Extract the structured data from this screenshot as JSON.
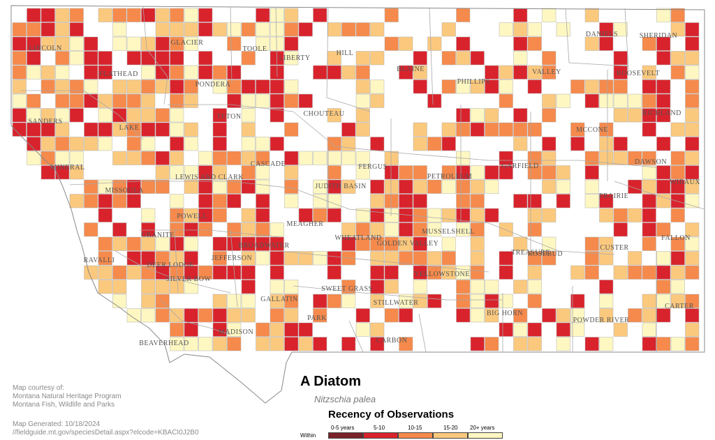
{
  "map": {
    "counties": [
      "LINCOLN",
      "FLATHEAD",
      "GLACIER",
      "TOOLE",
      "LIBERTY",
      "HILL",
      "BLAINE",
      "PHILLIPS",
      "VALLEY",
      "DANIELS",
      "SHERIDAN",
      "ROOSEVELT",
      "PONDERA",
      "TETON",
      "LAKE",
      "SANDERS",
      "CHOUTEAU",
      "MINERAL",
      "CASCADE",
      "FERGUS",
      "PETROLEUM",
      "GARFIELD",
      "MCCONE",
      "RICHLAND",
      "DAWSON",
      "WIBAUX",
      "MISSOULA",
      "LEWIS AND CLARK",
      "JUDITH BASIN",
      "POWELL",
      "MEAGHER",
      "PRAIRIE",
      "GRANITE",
      "BROADWATER",
      "WHEATLAND",
      "GOLDEN VALLEY",
      "MUSSELSHELL",
      "ROSEBUD",
      "FALLON",
      "RAVALLI",
      "DEER LODGE",
      "JEFFERSON",
      "CUSTER",
      "SILVER BOW",
      "YELLOWSTONE",
      "TREASURE",
      "SWEET GRASS",
      "GALLATIN",
      "STILLWATER",
      "PARK",
      "BIG HORN",
      "POWDER RIVER",
      "CARTER",
      "MADISON",
      "CARBON",
      "BEAVERHEAD"
    ],
    "legend_colors": {
      "0-5 years": "#7a2228",
      "5-10": "#d9232c",
      "10-15": "#f58a4c",
      "15-20": "#fbc97e",
      "20+ years": "#fef7c2"
    }
  },
  "title": "A Diatom",
  "scientific_name": "Nitzschia palea",
  "legend": {
    "title": "Recency of Observations",
    "within_label": "Within",
    "categories": [
      "0-5 years",
      "5-10",
      "10-15",
      "15-20",
      "20+ years"
    ]
  },
  "credits": {
    "line1": "Map courtesy of:",
    "line2": "Montana Natural Heritage Program",
    "line3": "Montana Fish, Wildlife and Parks",
    "generated": "Map Generated: 10/18/2024",
    "url": "//fieldguide.mt.gov/speciesDetail.aspx?elcode=KBACI0J2B0"
  }
}
